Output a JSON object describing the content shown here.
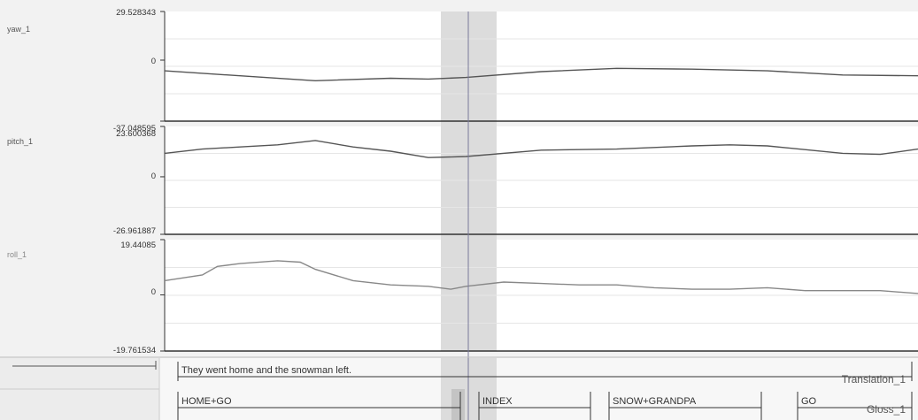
{
  "tracks": [
    {
      "name": "yaw_1",
      "max_label": "29.528343",
      "zero_label": "0",
      "min_label": "-37.048595",
      "ymax": 29.528343,
      "ymin": -37.048595,
      "x": [
        0,
        10,
        20,
        30,
        35,
        40,
        50,
        60,
        70,
        80,
        90,
        100
      ],
      "y": [
        -6.5,
        -9.5,
        -12.5,
        -11,
        -11.5,
        -10.5,
        -7,
        -5,
        -5.5,
        -6.5,
        -9,
        -9.5
      ]
    },
    {
      "name": "pitch_1",
      "max_label": "23.600368",
      "zero_label": "0",
      "min_label": "-26.961887",
      "ymax": 23.600368,
      "ymin": -26.961887,
      "x": [
        0,
        5,
        10,
        15,
        20,
        25,
        30,
        35,
        40,
        50,
        60,
        70,
        75,
        80,
        90,
        95,
        100
      ],
      "y": [
        11,
        13,
        14,
        15,
        17,
        14,
        12,
        9,
        9.5,
        12.5,
        13,
        14.5,
        15,
        14.5,
        11,
        10.5,
        13
      ]
    },
    {
      "name": "roll_1",
      "max_label": "19.44085",
      "zero_label": "0",
      "min_label": "-19.761534",
      "ymax": 19.44085,
      "ymin": -19.761534,
      "x": [
        0,
        5,
        7,
        10,
        15,
        18,
        20,
        25,
        30,
        35,
        38,
        40,
        45,
        50,
        55,
        60,
        65,
        70,
        75,
        80,
        85,
        90,
        95,
        100
      ],
      "y": [
        5,
        7,
        10,
        11,
        12,
        11.5,
        9,
        5,
        3.5,
        3,
        2,
        3,
        4.5,
        4,
        3.5,
        3.5,
        2.5,
        2,
        2,
        2.5,
        1.5,
        1.5,
        1.5,
        0.5
      ]
    }
  ],
  "tiers": [
    {
      "name": "Translation_1",
      "annotations": [
        {
          "text": "They went home and the snowman left."
        }
      ]
    },
    {
      "name": "Gloss_1",
      "annotations": [
        {
          "text": "HOME+GO"
        },
        {
          "text": "INDEX"
        },
        {
          "text": "SNOW+GRANDPA"
        },
        {
          "text": "GO"
        }
      ]
    }
  ],
  "cursor_icon": "scroll-arrows-icon",
  "colors": {
    "background": "#f2f2f2",
    "plot": "#ffffff",
    "line": "#555555",
    "light_line": "#888888",
    "selection": "#dcdcdc",
    "cursor": "#7a7a9a"
  }
}
